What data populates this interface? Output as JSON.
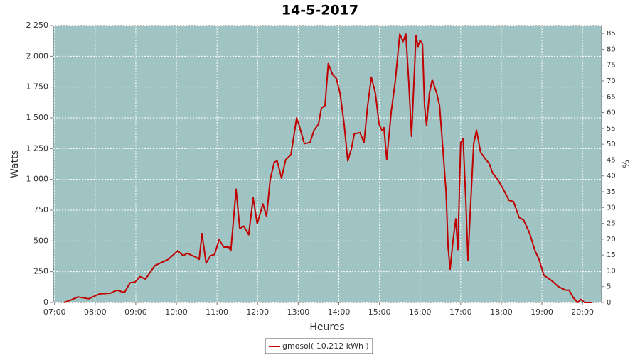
{
  "chart_data": {
    "type": "line",
    "title": "14-5-2017",
    "x_label": "Heures",
    "y_label": "Watts",
    "y2_label": "%",
    "x": [
      7.23,
      7.4,
      7.58,
      7.84,
      8.11,
      8.37,
      8.54,
      8.72,
      8.86,
      8.98,
      9.1,
      9.24,
      9.47,
      9.8,
      10.03,
      10.17,
      10.26,
      10.47,
      10.56,
      10.63,
      10.73,
      10.84,
      10.94,
      11.05,
      11.17,
      11.29,
      11.34,
      11.47,
      11.56,
      11.66,
      11.78,
      11.89,
      11.99,
      12.13,
      12.22,
      12.31,
      12.41,
      12.48,
      12.59,
      12.69,
      12.82,
      12.96,
      13.04,
      13.15,
      13.29,
      13.39,
      13.5,
      13.57,
      13.66,
      13.74,
      13.85,
      13.94,
      14.03,
      14.13,
      14.22,
      14.31,
      14.38,
      14.52,
      14.62,
      14.71,
      14.8,
      14.9,
      14.99,
      15.06,
      15.11,
      15.18,
      15.29,
      15.39,
      15.5,
      15.58,
      15.65,
      15.72,
      15.79,
      15.85,
      15.9,
      15.95,
      16.0,
      16.06,
      16.11,
      16.16,
      16.23,
      16.3,
      16.41,
      16.48,
      16.55,
      16.64,
      16.69,
      16.74,
      16.81,
      16.88,
      16.93,
      17.0,
      17.06,
      17.13,
      17.18,
      17.23,
      17.32,
      17.39,
      17.49,
      17.6,
      17.7,
      17.79,
      17.91,
      18.05,
      18.19,
      18.3,
      18.44,
      18.55,
      18.7,
      18.83,
      18.93,
      19.05,
      19.23,
      19.4,
      19.58,
      19.67,
      19.77,
      19.88,
      19.96,
      20.05,
      20.23
    ],
    "series": [
      {
        "name": "gmosol( 10,212 kWh )",
        "color": "#c00000",
        "values": [
          0,
          20,
          45,
          30,
          70,
          75,
          100,
          80,
          160,
          165,
          210,
          190,
          300,
          350,
          420,
          380,
          400,
          370,
          350,
          560,
          320,
          380,
          390,
          510,
          450,
          450,
          420,
          920,
          600,
          620,
          550,
          850,
          640,
          800,
          700,
          1000,
          1140,
          1150,
          1010,
          1160,
          1200,
          1500,
          1420,
          1290,
          1300,
          1400,
          1450,
          1580,
          1600,
          1940,
          1850,
          1820,
          1700,
          1450,
          1150,
          1250,
          1370,
          1380,
          1300,
          1600,
          1830,
          1700,
          1450,
          1400,
          1420,
          1160,
          1550,
          1800,
          2180,
          2120,
          2180,
          1800,
          1350,
          1800,
          2170,
          2080,
          2130,
          2100,
          1600,
          1440,
          1700,
          1810,
          1700,
          1600,
          1300,
          900,
          450,
          270,
          500,
          680,
          430,
          1300,
          1330,
          800,
          340,
          700,
          1290,
          1400,
          1220,
          1170,
          1130,
          1050,
          1000,
          920,
          830,
          820,
          690,
          670,
          560,
          420,
          350,
          220,
          180,
          130,
          100,
          100,
          40,
          0,
          25,
          0,
          0
        ]
      }
    ],
    "xlim": [
      6.97,
      20.47
    ],
    "xticks": [
      {
        "value": 7,
        "label": "07:00"
      },
      {
        "value": 8,
        "label": "08:00"
      },
      {
        "value": 9,
        "label": "09:00"
      },
      {
        "value": 10,
        "label": "10:00"
      },
      {
        "value": 11,
        "label": "11:00"
      },
      {
        "value": 12,
        "label": "12:00"
      },
      {
        "value": 13,
        "label": "13:00"
      },
      {
        "value": 14,
        "label": "14:00"
      },
      {
        "value": 15,
        "label": "15:00"
      },
      {
        "value": 16,
        "label": "16:00"
      },
      {
        "value": 17,
        "label": "17:00"
      },
      {
        "value": 18,
        "label": "18:00"
      },
      {
        "value": 19,
        "label": "19:00"
      },
      {
        "value": 20,
        "label": "20:00"
      }
    ],
    "ylim": [
      0,
      2250
    ],
    "yticks": [
      0,
      250,
      500,
      750,
      {
        "value": 1000,
        "label": "1 000"
      },
      {
        "value": 1250,
        "label": "1 250"
      },
      {
        "value": 1500,
        "label": "1 500"
      },
      {
        "value": 1750,
        "label": "1 750"
      },
      {
        "value": 2000,
        "label": "2 000"
      },
      {
        "value": 2250,
        "label": "2 250"
      }
    ],
    "y2lim": [
      0,
      87.5
    ],
    "y2ticks": [
      0,
      5,
      10,
      15,
      20,
      25,
      30,
      35,
      40,
      45,
      50,
      55,
      60,
      65,
      70,
      75,
      80,
      85
    ],
    "grid": true,
    "plot_background": "#a0c4c4"
  }
}
